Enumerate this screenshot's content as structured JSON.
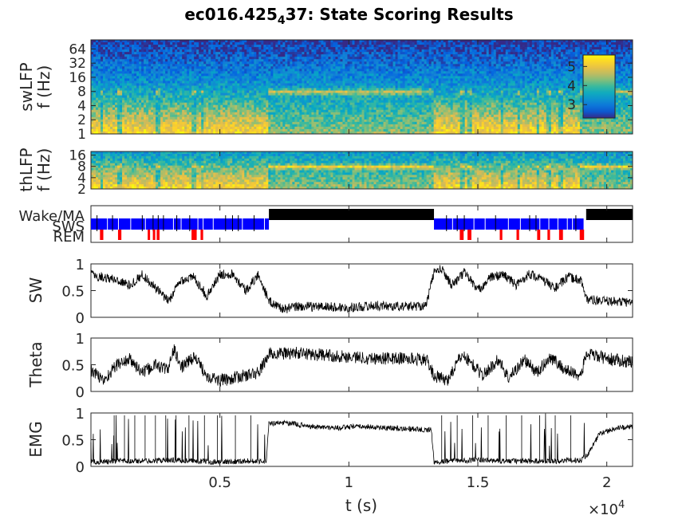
{
  "title": {
    "main": "ec016.425",
    "subscript": "4",
    "suffix": "37: State Scoring Results"
  },
  "colors": {
    "parula_stops": [
      "#352a87",
      "#0363e1",
      "#1485d4",
      "#06a7c6",
      "#38b99e",
      "#92bf73",
      "#d9ba56",
      "#fcce2e",
      "#f9fb0e"
    ],
    "wake": "#000000",
    "sws": "#0000ff",
    "rem": "#ff0000",
    "trace": "#000000"
  },
  "chart_data": [
    {
      "type": "heatmap",
      "name": "swLFP spectrogram",
      "ylabel": [
        "swLFP",
        "f (Hz)"
      ],
      "y_scale": "log",
      "ylim_hz": [
        1,
        100
      ],
      "y_ticks": [
        1,
        2,
        4,
        8,
        16,
        32,
        64
      ],
      "y_tick_labels": [
        "1",
        "2",
        "4",
        "8",
        "16",
        "32",
        "64"
      ],
      "colorbar": {
        "ticks": [
          3,
          4,
          5
        ],
        "tick_labels": [
          "3",
          "4",
          "5"
        ],
        "range": [
          2.3,
          5.6
        ],
        "location": "right-inside"
      },
      "x_units": "s",
      "xlim": [
        0,
        21000
      ],
      "states_overlay_description": "broadband power elevated during SWS epochs, narrow theta band near 8 Hz during wake/REM"
    },
    {
      "type": "heatmap",
      "name": "thLFP spectrogram",
      "ylabel": [
        "thLFP",
        "f (Hz)"
      ],
      "y_scale": "log",
      "ylim_hz": [
        2,
        20
      ],
      "y_ticks": [
        2,
        4,
        8,
        16
      ],
      "y_tick_labels": [
        "2",
        "4",
        "8",
        "16"
      ],
      "xlim": [
        0,
        21000
      ]
    },
    {
      "type": "bar",
      "name": "hypnogram",
      "y_categories": [
        "Wake/MA",
        "SWS",
        "REM"
      ],
      "xlim": [
        0,
        21000
      ],
      "wake_intervals": [
        [
          6900,
          13300
        ],
        [
          19200,
          21000
        ]
      ],
      "sws_intervals": [
        [
          0,
          6900
        ],
        [
          13300,
          19100
        ]
      ],
      "rem_intervals": [
        [
          350,
          480
        ],
        [
          1050,
          1180
        ],
        [
          2200,
          2260
        ],
        [
          2400,
          2460
        ],
        [
          2550,
          2660
        ],
        [
          3900,
          4100
        ],
        [
          4250,
          4350
        ],
        [
          14300,
          14450
        ],
        [
          14600,
          14750
        ],
        [
          15850,
          15950
        ],
        [
          16500,
          16600
        ],
        [
          17300,
          17420
        ],
        [
          17700,
          17800
        ],
        [
          18150,
          18300
        ],
        [
          18950,
          19120
        ]
      ]
    },
    {
      "type": "line",
      "name": "SW",
      "ylabel": "SW",
      "ylim": [
        0,
        1
      ],
      "y_ticks": [
        0,
        0.5,
        1
      ],
      "y_tick_labels": [
        "0",
        "0.5",
        "1"
      ],
      "xlim": [
        0,
        21000
      ],
      "x": [
        0,
        500,
        1000,
        1500,
        2000,
        2500,
        3000,
        3500,
        4000,
        4500,
        5000,
        5500,
        6000,
        6500,
        6900,
        7500,
        8000,
        9000,
        10000,
        11000,
        12000,
        13000,
        13300,
        13600,
        14000,
        14500,
        15000,
        15500,
        16000,
        16500,
        17000,
        17500,
        18000,
        18500,
        19000,
        19200,
        19700,
        20200,
        21000
      ],
      "values": [
        0.8,
        0.75,
        0.7,
        0.6,
        0.8,
        0.55,
        0.3,
        0.7,
        0.75,
        0.4,
        0.8,
        0.82,
        0.5,
        0.8,
        0.3,
        0.15,
        0.2,
        0.2,
        0.18,
        0.22,
        0.2,
        0.22,
        0.85,
        0.9,
        0.6,
        0.85,
        0.5,
        0.75,
        0.8,
        0.6,
        0.82,
        0.7,
        0.55,
        0.75,
        0.7,
        0.35,
        0.3,
        0.3,
        0.28
      ]
    },
    {
      "type": "line",
      "name": "Theta",
      "ylabel": "Theta",
      "ylim": [
        0,
        1
      ],
      "y_ticks": [
        0,
        0.5,
        1
      ],
      "y_tick_labels": [
        "0",
        "0.5",
        "1"
      ],
      "xlim": [
        0,
        21000
      ],
      "x": [
        0,
        500,
        1000,
        1500,
        2000,
        2500,
        3000,
        3200,
        3500,
        4000,
        4500,
        5000,
        5500,
        6000,
        6500,
        6900,
        8000,
        9000,
        10000,
        11000,
        12000,
        13000,
        13300,
        13800,
        14400,
        14800,
        15200,
        15800,
        16200,
        16800,
        17300,
        17800,
        18400,
        19000,
        19200,
        19700,
        20200,
        21000
      ],
      "values": [
        0.4,
        0.2,
        0.5,
        0.6,
        0.35,
        0.5,
        0.4,
        0.8,
        0.45,
        0.65,
        0.3,
        0.2,
        0.25,
        0.3,
        0.35,
        0.7,
        0.72,
        0.68,
        0.65,
        0.62,
        0.62,
        0.6,
        0.3,
        0.2,
        0.7,
        0.5,
        0.3,
        0.6,
        0.25,
        0.6,
        0.35,
        0.65,
        0.4,
        0.3,
        0.7,
        0.65,
        0.6,
        0.55
      ]
    },
    {
      "type": "line",
      "name": "EMG",
      "ylabel": "EMG",
      "ylim": [
        0,
        1
      ],
      "y_ticks": [
        0,
        0.5,
        1
      ],
      "y_tick_labels": [
        "0",
        "0.5",
        "1"
      ],
      "xlim": [
        0,
        21000
      ],
      "xlabel": "t (s)",
      "x_ticks": [
        5000,
        10000,
        15000,
        20000
      ],
      "x_tick_labels": [
        "0.5",
        "1",
        "1.5",
        "2"
      ],
      "x_multiplier": "×10",
      "x_multiplier_exp": "4",
      "x": [
        0,
        1000,
        2000,
        3000,
        4000,
        5000,
        6000,
        6800,
        6900,
        7500,
        8500,
        9500,
        10500,
        11500,
        12500,
        13200,
        13300,
        14000,
        15000,
        16000,
        17000,
        18000,
        19000,
        19300,
        19700,
        20200,
        21000
      ],
      "values": [
        0.08,
        0.1,
        0.1,
        0.12,
        0.1,
        0.08,
        0.1,
        0.1,
        0.8,
        0.82,
        0.75,
        0.72,
        0.75,
        0.72,
        0.7,
        0.68,
        0.08,
        0.1,
        0.12,
        0.1,
        0.1,
        0.1,
        0.12,
        0.25,
        0.6,
        0.7,
        0.75
      ],
      "spike_times": [
        900,
        1300,
        1700,
        2100,
        2500,
        2900,
        3300,
        3800,
        4400,
        4900,
        5600,
        6200,
        13600,
        14200,
        14800,
        15400,
        16100,
        16700,
        17400,
        18000,
        18600
      ]
    }
  ]
}
